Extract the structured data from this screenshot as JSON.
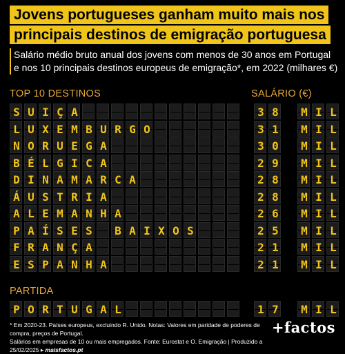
{
  "title": {
    "line1": "Jovens portugueses ganham muito mais nos",
    "line2": "principais destinos de emigração portuguesa"
  },
  "subtitle": "Salário médio bruto anual dos jovens com menos de 30 anos em Portugal e nos 10 principais destinos europeus de emigração*, em 2022 (milhares €)",
  "headers": {
    "destinations": "TOP 10 DESTINOS",
    "salary": "SALÁRIO (€)",
    "departure": "PARTIDA"
  },
  "chart_data": {
    "type": "table",
    "unit_label": "MIL",
    "categories": [
      "SUIÇA",
      "LUXEMBURGO",
      "NORUEGA",
      "BÉLGICA",
      "DINAMARCA",
      "ÁUSTRIA",
      "ALEMANHA",
      "PAÍSES BAIXOS",
      "FRANÇA",
      "ESPANHA"
    ],
    "values": [
      38,
      31,
      30,
      29,
      28,
      28,
      26,
      25,
      21,
      21
    ],
    "departure": {
      "name": "PORTUGAL",
      "value": 17
    }
  },
  "footer": {
    "line1": "* Em 2020-23. Países europeus, excluindo R. Unido. Notas: Valores em paridade de poderes de compra, preços de Portugal.",
    "line2": "Salários em empresas de 10 ou mais empregados. Fonte: Eurostat e O. Emigração | Produzido a 25/02/2025 ▸ ",
    "source": "maisfactos.pt"
  },
  "logo": "+factos"
}
